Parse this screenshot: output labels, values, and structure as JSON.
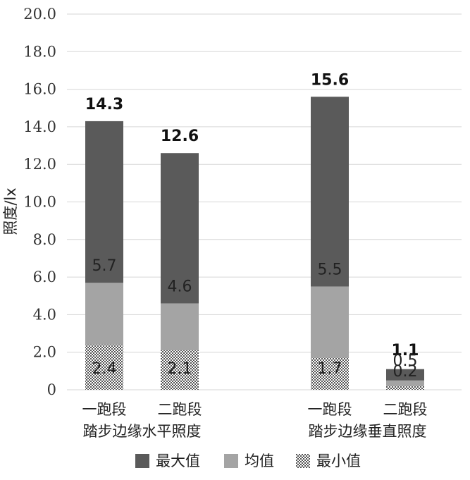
{
  "chart_data": {
    "type": "bar",
    "subtype": "stacked",
    "ylabel": "照度/lx",
    "ylim": [
      0,
      20
    ],
    "yticks": [
      "0",
      "2.0",
      "4.0",
      "6.0",
      "8.0",
      "10.0",
      "12.0",
      "14.0",
      "16.0",
      "18.0",
      "20.0"
    ],
    "grid": true,
    "legend_position": "bottom",
    "categories": [
      "一跑段",
      "二跑段",
      "一跑段",
      "二跑段"
    ],
    "groups": [
      {
        "label": "踏步边缘水平照度",
        "categories": [
          0,
          1
        ]
      },
      {
        "label": "踏步边缘垂直照度",
        "categories": [
          2,
          3
        ]
      }
    ],
    "series": [
      {
        "name": "最大值",
        "color": "#5a5a5a",
        "pattern": "solid",
        "values": [
          14.3,
          12.6,
          15.6,
          1.1
        ]
      },
      {
        "name": "均值",
        "color": "#a4a4a4",
        "pattern": "solid",
        "values": [
          5.7,
          4.6,
          5.5,
          0.5
        ]
      },
      {
        "name": "最小值",
        "color": "#8a8a8a",
        "pattern": "dots",
        "values": [
          2.4,
          2.1,
          1.7,
          0.2
        ]
      }
    ],
    "data_labels": [
      {
        "top": "14.3",
        "mid": "5.7",
        "low": "2.4"
      },
      {
        "top": "12.6",
        "mid": "4.6",
        "low": "2.1"
      },
      {
        "top": "15.6",
        "mid": "5.5",
        "low": "1.7"
      },
      {
        "top": "1.1",
        "mid": "0.5",
        "low": "0.2"
      }
    ]
  }
}
